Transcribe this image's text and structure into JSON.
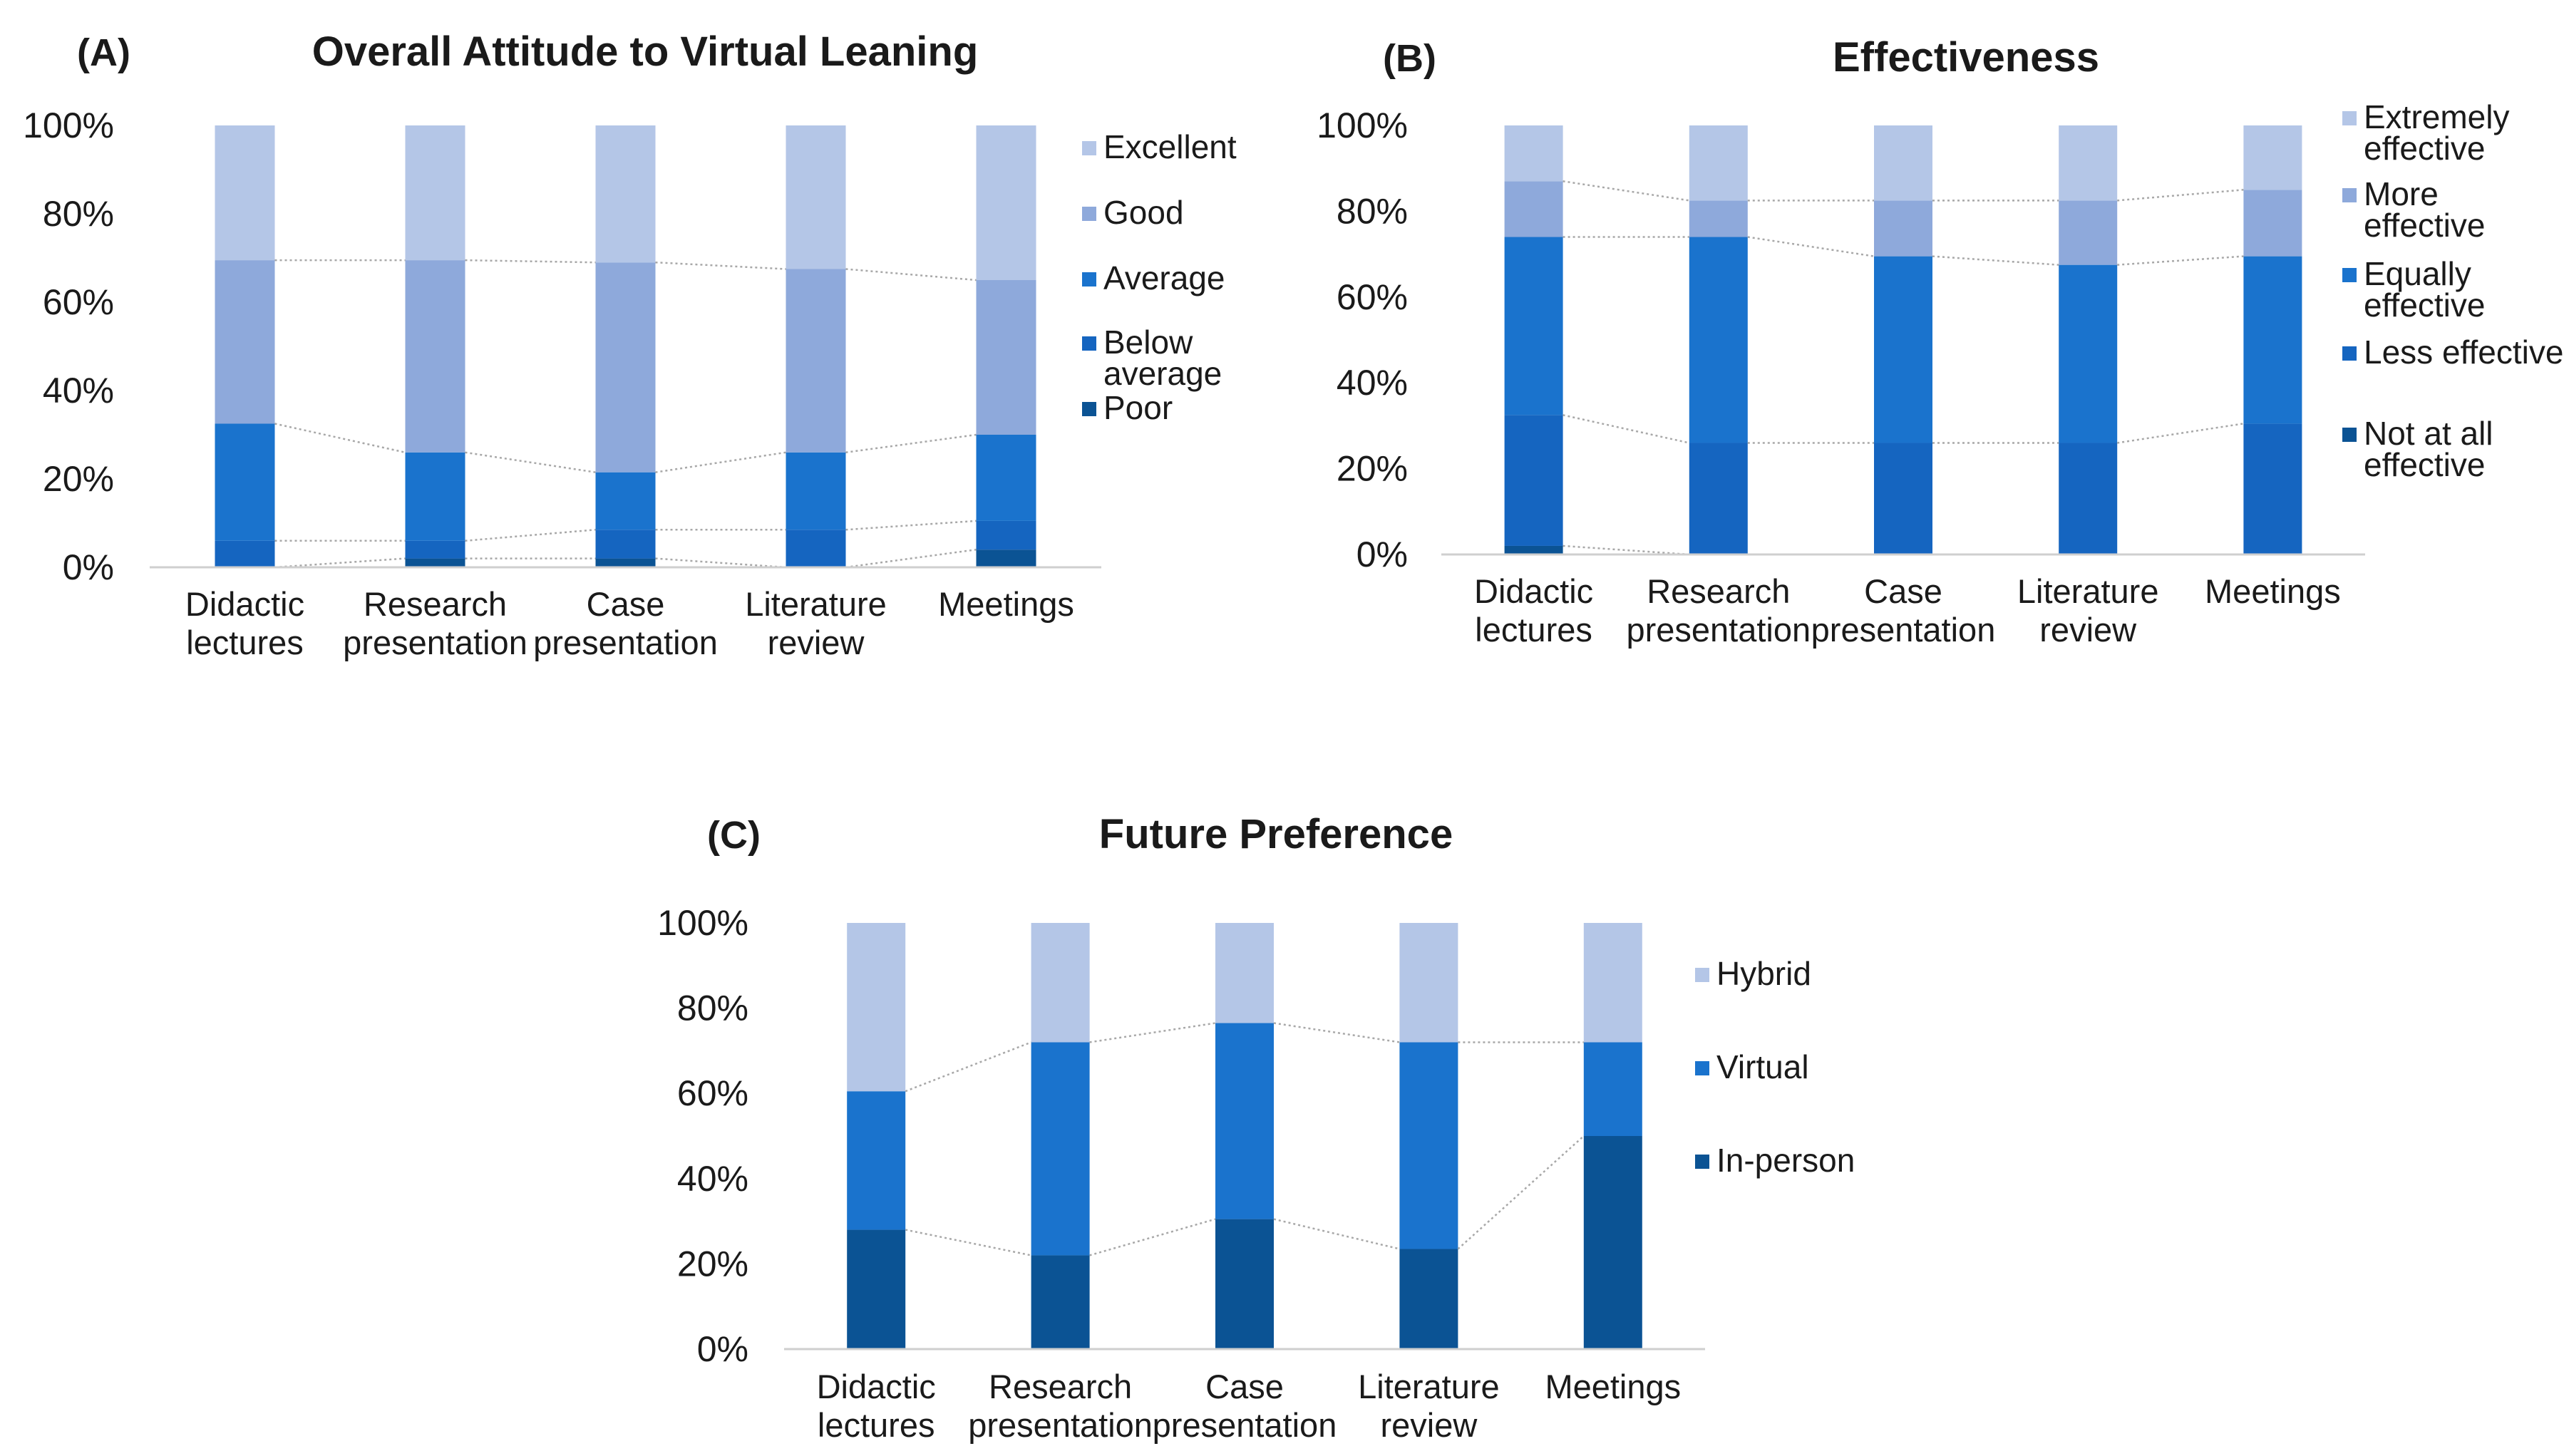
{
  "chart_data": [
    {
      "type": "bar",
      "stacked": true,
      "panel_label": "(A)",
      "title": "Overall Attitude to Virtual Leaning",
      "categories": [
        "Didactic lectures",
        "Research presentation",
        "Case presentation",
        "Literature review",
        "Meetings"
      ],
      "y_ticks": [
        "0%",
        "20%",
        "40%",
        "60%",
        "80%",
        "100%"
      ],
      "ylim": [
        0,
        100
      ],
      "legend_position": "right",
      "series": [
        {
          "name": "Poor",
          "values": [
            0,
            2,
            2,
            0,
            4
          ],
          "color": "#0b5394"
        },
        {
          "name": "Below average",
          "values": [
            6,
            4,
            6.5,
            8.5,
            6.5
          ],
          "color": "#1565c0"
        },
        {
          "name": "Average",
          "values": [
            26.5,
            20,
            13,
            17.5,
            19.5
          ],
          "color": "#1a73cd"
        },
        {
          "name": "Good",
          "values": [
            37,
            43.5,
            47.5,
            41.5,
            35
          ],
          "color": "#8ea9db"
        },
        {
          "name": "Excellent",
          "values": [
            30.5,
            30.5,
            31,
            32.5,
            35
          ],
          "color": "#b4c6e7"
        }
      ]
    },
    {
      "type": "bar",
      "stacked": true,
      "panel_label": "(B)",
      "title": "Effectiveness",
      "categories": [
        "Didactic lectures",
        "Research presentation",
        "Case presentation",
        "Literature review",
        "Meetings"
      ],
      "y_ticks": [
        "0%",
        "20%",
        "40%",
        "60%",
        "80%",
        "100%"
      ],
      "ylim": [
        0,
        100
      ],
      "legend_position": "right",
      "series": [
        {
          "name": "Not at all effective",
          "values": [
            2,
            0,
            0,
            0,
            0
          ],
          "color": "#0b5394"
        },
        {
          "name": "Less effective",
          "values": [
            30.5,
            26,
            26,
            26,
            30.5
          ],
          "color": "#1565c0"
        },
        {
          "name": "Equally effective",
          "values": [
            41.5,
            48,
            43.5,
            41.5,
            39
          ],
          "color": "#1a73cd"
        },
        {
          "name": "More effective",
          "values": [
            13,
            8.5,
            13,
            15,
            15.5
          ],
          "color": "#8ea9db"
        },
        {
          "name": "Extremely effective",
          "values": [
            13,
            17.5,
            17.5,
            17.5,
            15
          ],
          "color": "#b4c6e7"
        }
      ]
    },
    {
      "type": "bar",
      "stacked": true,
      "panel_label": "(C)",
      "title": "Future Preference",
      "categories": [
        "Didactic lectures",
        "Research presentation",
        "Case presentation",
        "Literature review",
        "Meetings"
      ],
      "y_ticks": [
        "0%",
        "20%",
        "40%",
        "60%",
        "80%",
        "100%"
      ],
      "ylim": [
        0,
        100
      ],
      "legend_position": "right",
      "series": [
        {
          "name": "In-person",
          "values": [
            28,
            22,
            30.5,
            23.5,
            50
          ],
          "color": "#0b5394"
        },
        {
          "name": "Virtual",
          "values": [
            32.5,
            50,
            46,
            48.5,
            22
          ],
          "color": "#1a73cd"
        },
        {
          "name": "Hybrid",
          "values": [
            39.5,
            28,
            23.5,
            28,
            28
          ],
          "color": "#b4c6e7"
        }
      ]
    }
  ]
}
